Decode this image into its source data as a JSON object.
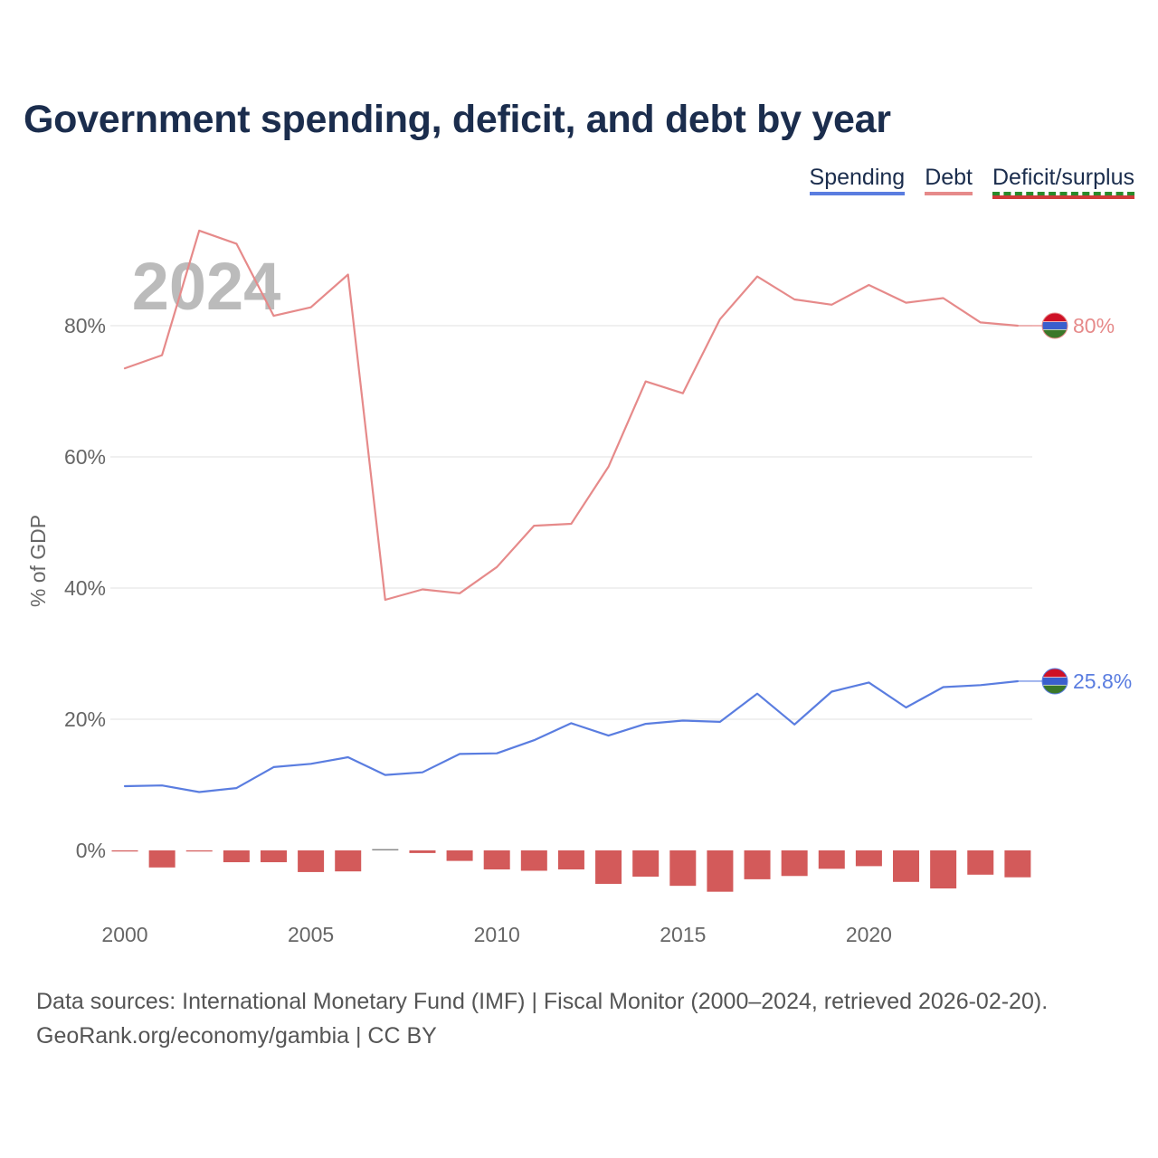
{
  "title": "Government spending, deficit, and debt by year",
  "legend": {
    "spending": "Spending",
    "debt": "Debt",
    "deficit": "Deficit/surplus"
  },
  "year_watermark": "2024",
  "footer": {
    "line1": "Data sources: International Monetary Fund (IMF) | Fiscal Monitor (2000–2024, retrieved 2026-02-20).",
    "line2": "GeoRank.org/economy/gambia | CC BY"
  },
  "colors": {
    "spending": "#5a7de0",
    "debt": "#e68a8a",
    "deficit": "#d35a5a",
    "surplus": "#888888",
    "grid": "#e6e6e6",
    "axis_text": "#666666",
    "watermark": "#bbbbbb"
  },
  "end_labels": {
    "debt": "80%",
    "spending": "25.8%"
  },
  "chart_data": {
    "type": "line",
    "title": "Government spending, deficit, and debt by year",
    "xlabel": "",
    "ylabel": "% of GDP",
    "x": [
      2000,
      2001,
      2002,
      2003,
      2004,
      2005,
      2006,
      2007,
      2008,
      2009,
      2010,
      2011,
      2012,
      2013,
      2014,
      2015,
      2016,
      2017,
      2018,
      2019,
      2020,
      2021,
      2022,
      2023,
      2024
    ],
    "xlim": [
      2000,
      2025
    ],
    "ylim": [
      -10,
      100
    ],
    "x_ticks": [
      2000,
      2005,
      2010,
      2015,
      2020
    ],
    "x_tick_labels": [
      "2000",
      "2005",
      "2010",
      "2015",
      "2020"
    ],
    "y_ticks": [
      0,
      20,
      40,
      60,
      80
    ],
    "y_tick_labels": [
      "0%",
      "20%",
      "40%",
      "60%",
      "80%"
    ],
    "series": [
      {
        "name": "Debt",
        "kind": "line",
        "values": [
          73.5,
          75.5,
          94.5,
          92.5,
          81.5,
          82.8,
          87.8,
          38.2,
          39.8,
          39.2,
          43.2,
          49.5,
          49.8,
          58.5,
          71.5,
          69.7,
          81.0,
          87.5,
          84.0,
          83.2,
          86.2,
          83.5,
          84.2,
          80.5,
          80.0
        ]
      },
      {
        "name": "Spending",
        "kind": "line",
        "values": [
          9.8,
          9.9,
          8.9,
          9.5,
          12.7,
          13.2,
          14.2,
          11.5,
          11.9,
          14.7,
          14.8,
          16.8,
          19.4,
          17.5,
          19.3,
          19.8,
          19.6,
          23.9,
          19.2,
          24.2,
          25.6,
          21.8,
          24.9,
          25.2,
          25.8
        ]
      },
      {
        "name": "Deficit/surplus",
        "kind": "bar",
        "values": [
          -0.1,
          -2.6,
          -0.1,
          -1.8,
          -1.8,
          -3.3,
          -3.2,
          0.2,
          -0.4,
          -1.6,
          -2.9,
          -3.1,
          -2.9,
          -5.1,
          -4.0,
          -5.4,
          -6.3,
          -4.4,
          -3.9,
          -2.8,
          -2.4,
          -4.8,
          -5.8,
          -3.7,
          -4.1
        ]
      }
    ]
  }
}
